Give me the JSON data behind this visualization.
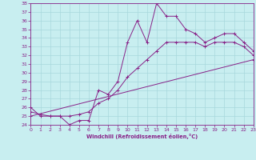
{
  "xlabel": "Windchill (Refroidissement éolien,°C)",
  "bg_color": "#c8eef0",
  "grid_color": "#a8d8dc",
  "line_color": "#882288",
  "xmin": 0,
  "xmax": 23,
  "ymin": 24,
  "ymax": 38,
  "line1_x": [
    0,
    1,
    2,
    3,
    4,
    5,
    6,
    7,
    8,
    9,
    10,
    11,
    12,
    13,
    14,
    15,
    16,
    17,
    18,
    19,
    20,
    21,
    22,
    23
  ],
  "line1_y": [
    26.0,
    25.0,
    25.0,
    25.0,
    24.0,
    24.5,
    24.5,
    28.0,
    27.5,
    29.0,
    33.5,
    36.0,
    33.5,
    38.0,
    36.5,
    36.5,
    35.0,
    34.5,
    33.5,
    34.0,
    34.5,
    34.5,
    33.5,
    32.5
  ],
  "line2_x": [
    0,
    1,
    2,
    3,
    4,
    5,
    6,
    7,
    8,
    9,
    10,
    11,
    12,
    13,
    14,
    15,
    16,
    17,
    18,
    19,
    20,
    21,
    22,
    23
  ],
  "line2_y": [
    25.5,
    25.2,
    25.0,
    25.0,
    25.0,
    25.2,
    25.5,
    26.5,
    27.0,
    28.0,
    29.5,
    30.5,
    31.5,
    32.5,
    33.5,
    33.5,
    33.5,
    33.5,
    33.0,
    33.5,
    33.5,
    33.5,
    33.0,
    32.0
  ],
  "line3_x": [
    0,
    23
  ],
  "line3_y": [
    25.0,
    31.5
  ]
}
